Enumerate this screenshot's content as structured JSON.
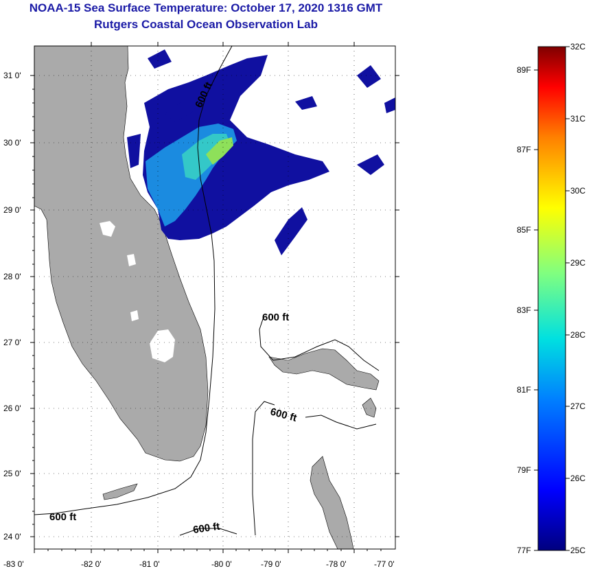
{
  "title": {
    "line1": "NOAA-15 Sea Surface Temperature:  October 17, 2020 1316 GMT",
    "line2": "Rutgers Coastal Ocean Observation Lab"
  },
  "axes": {
    "lat_labels": [
      "31 0'",
      "30 0'",
      "29 0'",
      "28 0'",
      "27 0'",
      "26 0'",
      "25 0'",
      "24 0'"
    ],
    "lon_labels": [
      "-83 0'",
      "-82 0'",
      "-81 0'",
      "-80 0'",
      "-79 0'",
      "-78 0'",
      "-77 0'"
    ]
  },
  "contours": {
    "label": "600 ft",
    "isobath_labels": [
      "600 ft",
      "600 ft",
      "600 ft",
      "600 ft",
      "600 ft"
    ]
  },
  "colorbar": {
    "celsius_labels": [
      "32C",
      "31C",
      "30C",
      "29C",
      "28C",
      "27C",
      "26C",
      "25C"
    ],
    "fahrenheit_labels": [
      "89F",
      "87F",
      "85F",
      "83F",
      "81F",
      "79F",
      "77F"
    ]
  },
  "colors": {
    "title": "#1a1aa6",
    "land": "#aaaaaa",
    "water_nodata": "#ffffff"
  }
}
